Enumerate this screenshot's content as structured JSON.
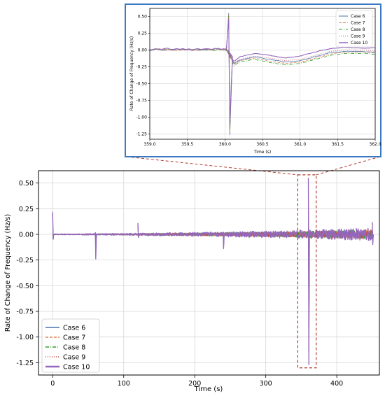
{
  "chart_data": [
    {
      "panel": "main",
      "type": "line",
      "title": "",
      "xlabel": "Time (s)",
      "ylabel": "Rate of Change of Frequency (Hz/s)",
      "xlim": [
        -20,
        460
      ],
      "ylim": [
        -1.37,
        0.62
      ],
      "xticks": [
        0,
        100,
        200,
        300,
        400
      ],
      "yticks": [
        0.5,
        0.25,
        0.0,
        -0.25,
        -0.5,
        -0.75,
        -1.0,
        -1.25
      ],
      "grid": true,
      "legend_position": "lower-left",
      "series": [
        {
          "name": "Case 6",
          "color": "#4c72b0",
          "dash": "solid"
        },
        {
          "name": "Case 7",
          "color": "#dd8452",
          "dash": "dashed"
        },
        {
          "name": "Case 8",
          "color": "#2ca02c",
          "dash": "dashdot"
        },
        {
          "name": "Case 9",
          "color": "#c44e52",
          "dash": "dotted"
        },
        {
          "name": "Case 10",
          "color": "#9467bd",
          "dash": "solid-thick"
        }
      ],
      "events": [
        {
          "x": 0,
          "min": -0.05,
          "max": 0.22
        },
        {
          "x": 60,
          "min": -0.24,
          "max": 0.02
        },
        {
          "x": 120,
          "min": -0.03,
          "max": 0.11
        },
        {
          "x": 240,
          "min": -0.14,
          "max": 0.02
        },
        {
          "x": 360,
          "min": -1.27,
          "max": 0.55
        },
        {
          "x": 450,
          "min": -0.1,
          "max": 0.12
        }
      ],
      "envelope": [
        {
          "x": 0,
          "amp": 0.004
        },
        {
          "x": 60,
          "amp": 0.006
        },
        {
          "x": 100,
          "amp": 0.008
        },
        {
          "x": 140,
          "amp": 0.012
        },
        {
          "x": 180,
          "amp": 0.015
        },
        {
          "x": 220,
          "amp": 0.018
        },
        {
          "x": 260,
          "amp": 0.022
        },
        {
          "x": 300,
          "amp": 0.028
        },
        {
          "x": 340,
          "amp": 0.032
        },
        {
          "x": 380,
          "amp": 0.04
        },
        {
          "x": 420,
          "amp": 0.046
        },
        {
          "x": 450,
          "amp": 0.05
        }
      ],
      "zoom_box": {
        "x": [
          345,
          371
        ],
        "y": [
          -1.3,
          0.58
        ]
      }
    },
    {
      "panel": "inset",
      "type": "line",
      "title": "",
      "xlabel": "Time (s)",
      "ylabel": "Rate of Change of Frequency (Hz/s)",
      "xlim": [
        359.0,
        362.0
      ],
      "ylim": [
        -1.33,
        0.62
      ],
      "xticks": [
        "359.0",
        "359.5",
        "360.0",
        "360.5",
        "361.0",
        "361.5",
        "362.0"
      ],
      "yticks": [
        "0.50",
        "0.25",
        "0.00",
        "-0.25",
        "-0.50",
        "-0.75",
        "-1.00",
        "-1.25"
      ],
      "grid": true,
      "legend_position": "top-right",
      "spike": {
        "x": 360.05,
        "max": 0.55,
        "min": -1.27
      },
      "series": [
        {
          "name": "Case 6",
          "color": "#4c72b0",
          "dash": "solid",
          "points": [
            [
              359.0,
              0.0
            ],
            [
              359.4,
              0.01
            ],
            [
              359.8,
              0.0
            ],
            [
              360.02,
              0.01
            ],
            [
              360.12,
              -0.2
            ],
            [
              360.2,
              -0.15
            ],
            [
              360.4,
              -0.1
            ],
            [
              360.6,
              -0.14
            ],
            [
              360.8,
              -0.18
            ],
            [
              361.0,
              -0.16
            ],
            [
              361.2,
              -0.1
            ],
            [
              361.4,
              -0.04
            ],
            [
              361.6,
              -0.02
            ],
            [
              361.8,
              -0.02
            ],
            [
              362.0,
              -0.03
            ]
          ]
        },
        {
          "name": "Case 7",
          "color": "#dd8452",
          "dash": "dashed",
          "points": [
            [
              359.0,
              0.01
            ],
            [
              359.4,
              0.0
            ],
            [
              359.8,
              0.01
            ],
            [
              360.02,
              0.0
            ],
            [
              360.12,
              -0.21
            ],
            [
              360.2,
              -0.16
            ],
            [
              360.4,
              -0.12
            ],
            [
              360.6,
              -0.17
            ],
            [
              360.8,
              -0.2
            ],
            [
              361.0,
              -0.18
            ],
            [
              361.2,
              -0.12
            ],
            [
              361.4,
              -0.06
            ],
            [
              361.6,
              -0.03
            ],
            [
              361.8,
              -0.03
            ],
            [
              362.0,
              -0.04
            ]
          ]
        },
        {
          "name": "Case 8",
          "color": "#2ca02c",
          "dash": "dashdot",
          "points": [
            [
              359.0,
              0.0
            ],
            [
              359.4,
              0.01
            ],
            [
              359.8,
              0.0
            ],
            [
              360.02,
              0.0
            ],
            [
              360.12,
              -0.23
            ],
            [
              360.2,
              -0.18
            ],
            [
              360.4,
              -0.14
            ],
            [
              360.6,
              -0.19
            ],
            [
              360.8,
              -0.22
            ],
            [
              361.0,
              -0.2
            ],
            [
              361.2,
              -0.14
            ],
            [
              361.4,
              -0.08
            ],
            [
              361.6,
              -0.05
            ],
            [
              361.8,
              -0.05
            ],
            [
              362.0,
              -0.06
            ]
          ]
        },
        {
          "name": "Case 9",
          "color": "#c44e52",
          "dash": "dotted",
          "points": [
            [
              359.0,
              0.01
            ],
            [
              359.4,
              0.0
            ],
            [
              359.8,
              0.01
            ],
            [
              360.02,
              0.01
            ],
            [
              360.12,
              -0.19
            ],
            [
              360.2,
              -0.14
            ],
            [
              360.4,
              -0.09
            ],
            [
              360.6,
              -0.12
            ],
            [
              360.8,
              -0.16
            ],
            [
              361.0,
              -0.14
            ],
            [
              361.2,
              -0.08
            ],
            [
              361.4,
              -0.02
            ],
            [
              361.6,
              0.0
            ],
            [
              361.8,
              0.0
            ],
            [
              362.0,
              -0.01
            ]
          ]
        },
        {
          "name": "Case 10",
          "color": "#9467bd",
          "dash": "solid",
          "points": [
            [
              359.0,
              0.01
            ],
            [
              359.4,
              0.02
            ],
            [
              359.8,
              0.01
            ],
            [
              360.02,
              0.02
            ],
            [
              360.12,
              -0.17
            ],
            [
              360.2,
              -0.1
            ],
            [
              360.4,
              -0.05
            ],
            [
              360.6,
              -0.08
            ],
            [
              360.8,
              -0.12
            ],
            [
              361.0,
              -0.09
            ],
            [
              361.2,
              -0.03
            ],
            [
              361.4,
              0.02
            ],
            [
              361.6,
              0.04
            ],
            [
              361.8,
              0.03
            ],
            [
              362.0,
              0.03
            ]
          ]
        }
      ]
    }
  ]
}
